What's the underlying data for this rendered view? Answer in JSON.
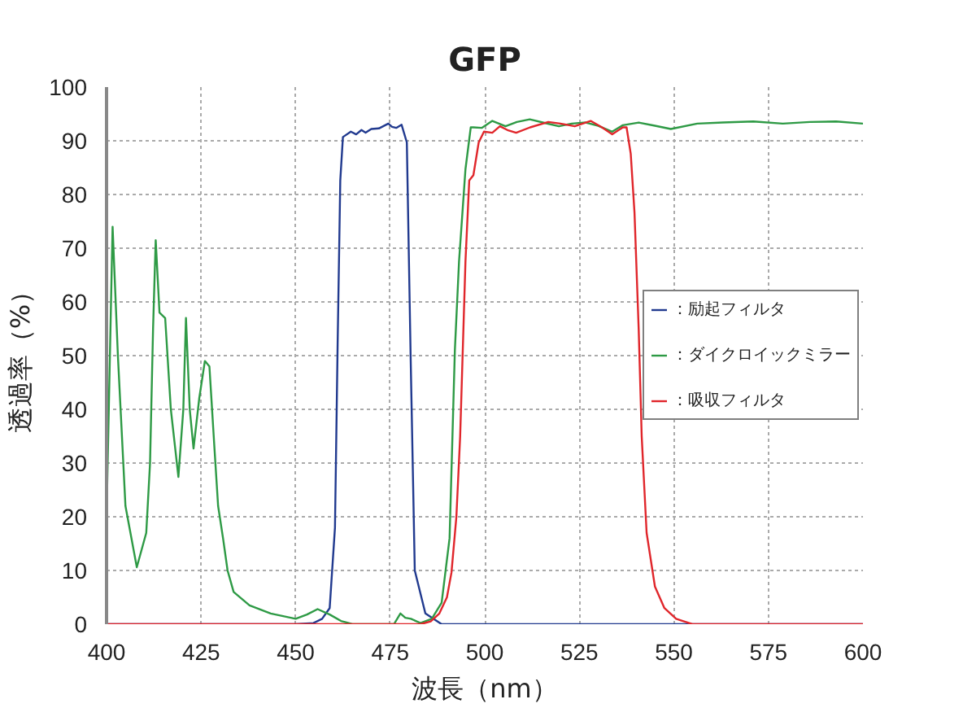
{
  "chart_data": {
    "type": "line",
    "title": "GFP",
    "xlabel": "波長（nm）",
    "ylabel": "透過率（%）",
    "xlim": [
      400,
      600
    ],
    "ylim": [
      0,
      100
    ],
    "xticks": [
      400,
      425,
      450,
      475,
      500,
      525,
      550,
      575,
      600
    ],
    "yticks": [
      0,
      10,
      20,
      30,
      40,
      50,
      60,
      70,
      80,
      90,
      100
    ],
    "grid": true,
    "legend": "right",
    "series": [
      {
        "name": "：励起フィルタ",
        "color": "#213a8f",
        "x": [
          400,
          450,
          454.7,
          457,
          459,
          460.4,
          461.1,
          461.8,
          462.5,
          464.6,
          466,
          467.4,
          468.5,
          470,
          472,
          474.5,
          475.5,
          476.6,
          478,
          479.4,
          480.4,
          481.5,
          484.3,
          488.6,
          600
        ],
        "values": [
          0,
          0,
          0.2,
          1,
          3,
          18,
          52,
          82.6,
          90.7,
          91.7,
          91.2,
          92,
          91.5,
          92.2,
          92.3,
          93.2,
          92.6,
          92.4,
          93,
          89.7,
          50,
          10,
          2,
          0,
          0
        ]
      },
      {
        "name": "：ダイクロイックミラー",
        "color": "#2e9a45",
        "x": [
          400,
          401.6,
          403,
          405,
          408,
          410.5,
          411.5,
          412.3,
          413,
          414,
          415.5,
          417,
          419,
          420.3,
          421,
          422,
          423,
          424.5,
          426,
          427.2,
          428.6,
          429.5,
          430.8,
          432,
          433.6,
          437.8,
          443.4,
          450,
          453,
          455.8,
          459,
          462,
          465,
          476,
          477.7,
          479,
          480.5,
          483,
          486,
          488.6,
          490.7,
          492.1,
          493.2,
          494.9,
          496.3,
          497,
          499.2,
          502,
          505.5,
          508.5,
          511.9,
          516,
          519.6,
          523,
          526.7,
          530,
          533.7,
          536.5,
          540.7,
          545,
          549.2,
          556.2,
          563,
          571,
          578.8,
          586,
          592.9,
          600
        ],
        "values": [
          20,
          74,
          50,
          22,
          10.6,
          17,
          30,
          55,
          71.5,
          58,
          57,
          40,
          27.4,
          40,
          57,
          40,
          32.7,
          42,
          49,
          48,
          32,
          22,
          16,
          10,
          6,
          3.5,
          2,
          1,
          1.8,
          2.8,
          1.8,
          0.6,
          0,
          0,
          2,
          1.2,
          1,
          0.2,
          1,
          4,
          16,
          51,
          67.5,
          84.7,
          92.5,
          92.5,
          92.4,
          93.7,
          92.7,
          93.5,
          94,
          93.3,
          92.7,
          93.2,
          93.4,
          92.8,
          91.7,
          92.9,
          93.4,
          92.8,
          92.2,
          93.2,
          93.4,
          93.6,
          93.2,
          93.5,
          93.6,
          93.2
        ]
      },
      {
        "name": "：吸収フィルタ",
        "color": "#e0262b",
        "x": [
          400,
          483,
          485.7,
          488,
          490,
          491.2,
          492.5,
          493.5,
          494.9,
          495.9,
          497,
          498.4,
          499.8,
          502,
          504,
          506,
          508.3,
          512,
          516.8,
          520,
          523.8,
          528,
          531,
          533.7,
          536.5,
          537.5,
          538.6,
          539.6,
          540.7,
          541.5,
          542.8,
          545,
          547.5,
          550.6,
          554.9,
          600
        ],
        "values": [
          0,
          0,
          0.5,
          2,
          5,
          9.6,
          20,
          35,
          67.5,
          82.6,
          83.6,
          89.7,
          91.7,
          91.5,
          92.7,
          92,
          91.5,
          92.5,
          93.5,
          93.2,
          92.7,
          93.7,
          92.5,
          91.2,
          92.5,
          92.5,
          87.6,
          76.6,
          55,
          35,
          17,
          7,
          3,
          1,
          0,
          0
        ]
      }
    ]
  }
}
